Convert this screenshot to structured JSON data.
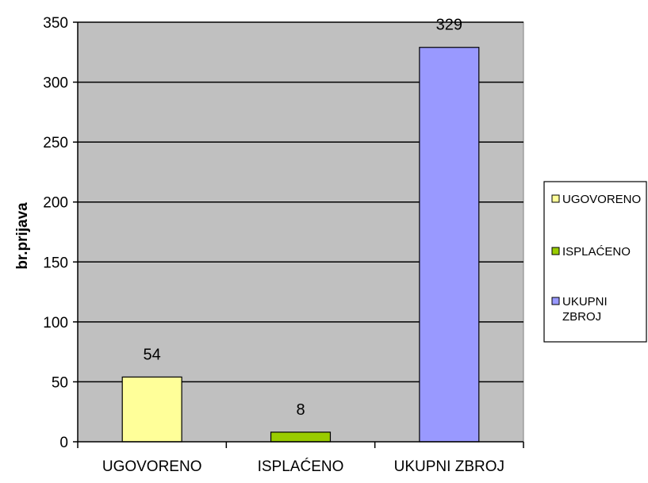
{
  "chart_data": {
    "type": "bar",
    "title": "",
    "xlabel": "",
    "ylabel": "br.prijava",
    "categories": [
      "UGOVORENO",
      "ISPLAĆENO",
      "UKUPNI ZBROJ"
    ],
    "values": [
      54,
      8,
      329
    ],
    "data_labels": [
      "54",
      "8",
      "329"
    ],
    "colors": [
      "#ffff99",
      "#99cc00",
      "#9999ff"
    ],
    "ylim": [
      0,
      350
    ],
    "yticks": [
      0,
      50,
      100,
      150,
      200,
      250,
      300,
      350
    ],
    "ytick_labels": [
      "0",
      "50",
      "100",
      "150",
      "200",
      "250",
      "300",
      "350"
    ],
    "grid": true,
    "plot_background": "#c0c0c0",
    "legend": {
      "placement": "right",
      "entries": [
        {
          "lines": [
            "UGOVORENO"
          ],
          "color": "#ffff99"
        },
        {
          "lines": [
            "ISPLAĆENO"
          ],
          "color": "#99cc00"
        },
        {
          "lines": [
            "UKUPNI",
            "ZBROJ"
          ],
          "color": "#9999ff"
        }
      ]
    }
  }
}
